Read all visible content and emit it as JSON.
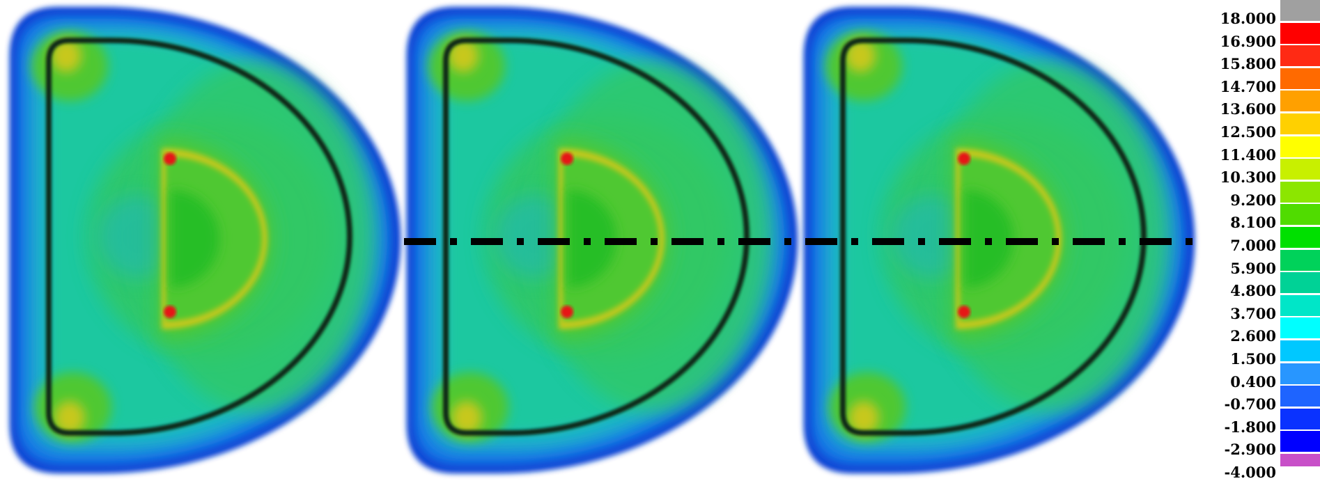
{
  "legend": {
    "labels": [
      "18.000",
      "16.900",
      "15.800",
      "14.700",
      "13.600",
      "12.500",
      "11.400",
      "10.300",
      "9.200",
      "8.100",
      "7.000",
      "5.900",
      "4.800",
      "3.700",
      "2.600",
      "1.500",
      "0.400",
      "-0.700",
      "-1.800",
      "-2.900",
      "-4.000"
    ],
    "colors": [
      "#a0a0a0",
      "#ff0000",
      "#ff2a14",
      "#ff6a00",
      "#ffa000",
      "#ffd000",
      "#ffff00",
      "#c8f000",
      "#8ce600",
      "#50dc00",
      "#00e000",
      "#00d25a",
      "#00d296",
      "#00e6c8",
      "#00ffff",
      "#00c8ff",
      "#2896ff",
      "#1e64ff",
      "#0a32ff",
      "#0000ff",
      "#c850c8"
    ]
  },
  "plot": {
    "panel_count": 3,
    "colors": {
      "outer_dark": "#0a3cd2",
      "outer_mid": "#1478e6",
      "outer_light": "#1e9ad6",
      "band": "#1eb4c8",
      "field": "#1ec8a0",
      "field_green": "#32c864",
      "core": "#50c832",
      "core_inner": "#28be28",
      "ring_yellow": "#c8c81e",
      "hotspot": "#e61414",
      "contour": "#0a2814",
      "axis_line": "#000000"
    }
  }
}
